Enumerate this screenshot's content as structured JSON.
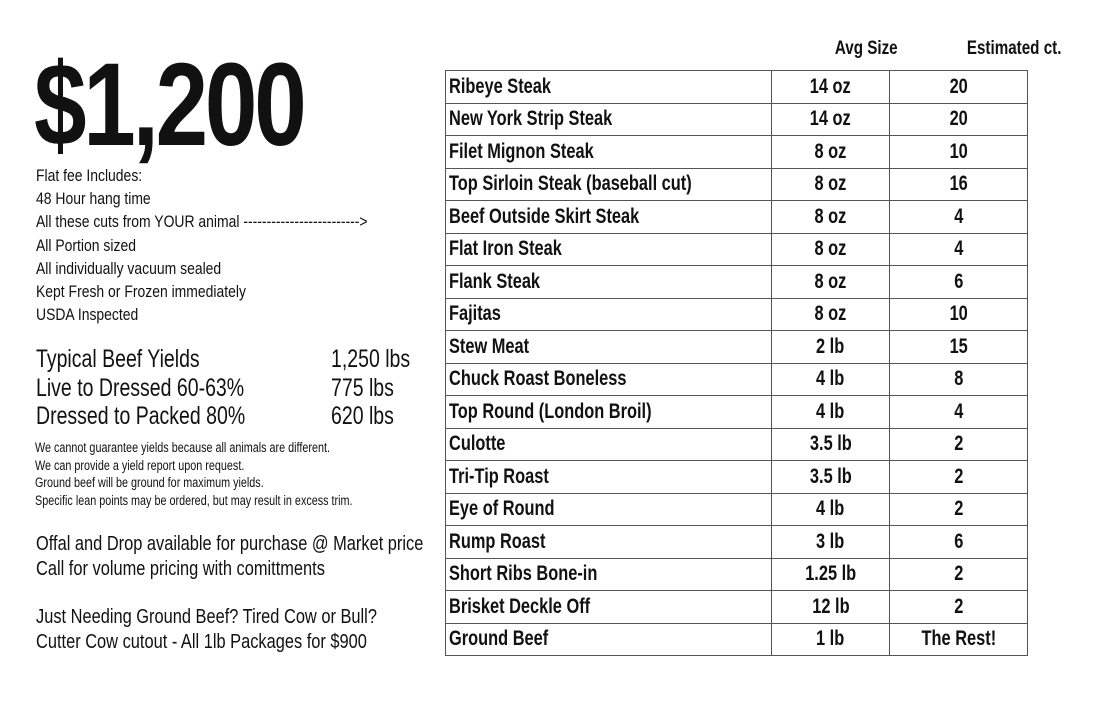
{
  "price": "$1,200",
  "includes": [
    "Flat fee Includes:",
    "48 Hour hang time",
    "All these cuts from YOUR animal ------------------------->",
    "All Portion sized",
    "All individually vacuum sealed",
    "Kept Fresh or Frozen immediately",
    "USDA Inspected"
  ],
  "yields": [
    {
      "label": "Typical Beef Yields",
      "value": "1,250 lbs"
    },
    {
      "label": "Live to Dressed 60-63%",
      "value": "775 lbs"
    },
    {
      "label": "Dressed to Packed 80%",
      "value": "620 lbs"
    }
  ],
  "disclaimer": [
    "We cannot guarantee yields because all animals are different.",
    "We can provide a yield report upon request.",
    "Ground beef will be ground for maximum yields.",
    "Specific lean points may be ordered, but may result in excess trim."
  ],
  "offal": [
    "Offal and Drop available for purchase @ Market price",
    "Call for volume pricing with comittments"
  ],
  "cutter": [
    "Just Needing Ground Beef? Tired Cow or Bull?",
    "Cutter Cow cutout - All 1lb Packages for $900"
  ],
  "table": {
    "headers": {
      "size": "Avg Size",
      "count": "Estimated ct."
    },
    "rows": [
      {
        "name": "Ribeye Steak",
        "size": "14 oz",
        "count": "20"
      },
      {
        "name": "New York Strip Steak",
        "size": "14 oz",
        "count": "20"
      },
      {
        "name": "Filet Mignon Steak",
        "size": "8 oz",
        "count": "10"
      },
      {
        "name": "Top Sirloin Steak (baseball cut)",
        "size": "8 oz",
        "count": "16"
      },
      {
        "name": "Beef Outside Skirt Steak",
        "size": "8 oz",
        "count": "4"
      },
      {
        "name": "Flat Iron Steak",
        "size": "8 oz",
        "count": "4"
      },
      {
        "name": "Flank Steak",
        "size": "8 oz",
        "count": "6"
      },
      {
        "name": "Fajitas",
        "size": "8 oz",
        "count": "10"
      },
      {
        "name": "Stew Meat",
        "size": "2 lb",
        "count": "15"
      },
      {
        "name": "Chuck Roast Boneless",
        "size": "4 lb",
        "count": "8"
      },
      {
        "name": "Top Round (London Broil)",
        "size": "4 lb",
        "count": "4"
      },
      {
        "name": "Culotte",
        "size": "3.5 lb",
        "count": "2"
      },
      {
        "name": "Tri-Tip Roast",
        "size": "3.5 lb",
        "count": "2"
      },
      {
        "name": "Eye of Round",
        "size": "4 lb",
        "count": "2"
      },
      {
        "name": "Rump Roast",
        "size": "3 lb",
        "count": "6"
      },
      {
        "name": "Short Ribs Bone-in",
        "size": "1.25 lb",
        "count": "2"
      },
      {
        "name": "Brisket Deckle Off",
        "size": "12 lb",
        "count": "2"
      },
      {
        "name": "Ground Beef",
        "size": "1 lb",
        "count": "The Rest!"
      }
    ]
  }
}
